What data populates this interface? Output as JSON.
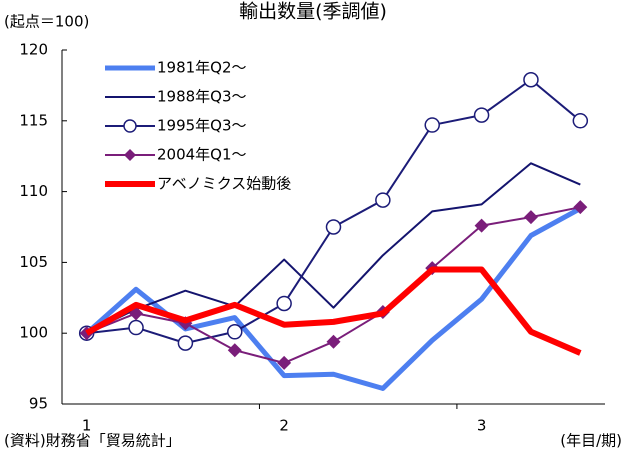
{
  "chart_data": {
    "type": "line",
    "title": "輸出数量(季調値)",
    "y_label": "(起点＝100)",
    "x_label": "(年目/期)",
    "source": "(資料)財務省「貿易統計」",
    "categories": [
      "1",
      null,
      null,
      null,
      "2",
      null,
      null,
      null,
      "3",
      null,
      null
    ],
    "ylim": [
      95,
      120
    ],
    "yticks": [
      95,
      100,
      105,
      110,
      115,
      120
    ],
    "grid": false,
    "legend": "top-left",
    "series": [
      {
        "name": "1981年Q2～",
        "color": "#4d7ff0",
        "width": 5,
        "marker": "none",
        "values": [
          100,
          103.1,
          100.3,
          101.1,
          97.0,
          97.1,
          96.1,
          99.5,
          102.4,
          106.9,
          108.8
        ]
      },
      {
        "name": "1988年Q3～",
        "color": "#14146e",
        "width": 2,
        "marker": "none",
        "values": [
          100,
          101.7,
          103.0,
          101.9,
          105.2,
          101.8,
          105.5,
          108.6,
          109.1,
          112.0,
          110.5
        ]
      },
      {
        "name": "1995年Q3～",
        "color": "#1c1c78",
        "width": 2,
        "marker": "circle",
        "values": [
          100,
          100.4,
          99.3,
          100.1,
          102.1,
          107.5,
          109.4,
          114.7,
          115.4,
          117.9,
          115.0
        ]
      },
      {
        "name": "2004年Q1～",
        "color": "#7a1e7a",
        "width": 2,
        "marker": "diamond",
        "values": [
          100,
          101.4,
          100.7,
          98.8,
          97.9,
          99.4,
          101.5,
          104.6,
          107.6,
          108.2,
          108.9
        ]
      },
      {
        "name": "アベノミクス始動後",
        "color": "#ff0000",
        "width": 6,
        "marker": "none",
        "values": [
          100,
          102.0,
          100.9,
          102.0,
          100.6,
          100.8,
          101.4,
          104.5,
          104.5,
          100.1,
          98.6
        ]
      }
    ]
  }
}
